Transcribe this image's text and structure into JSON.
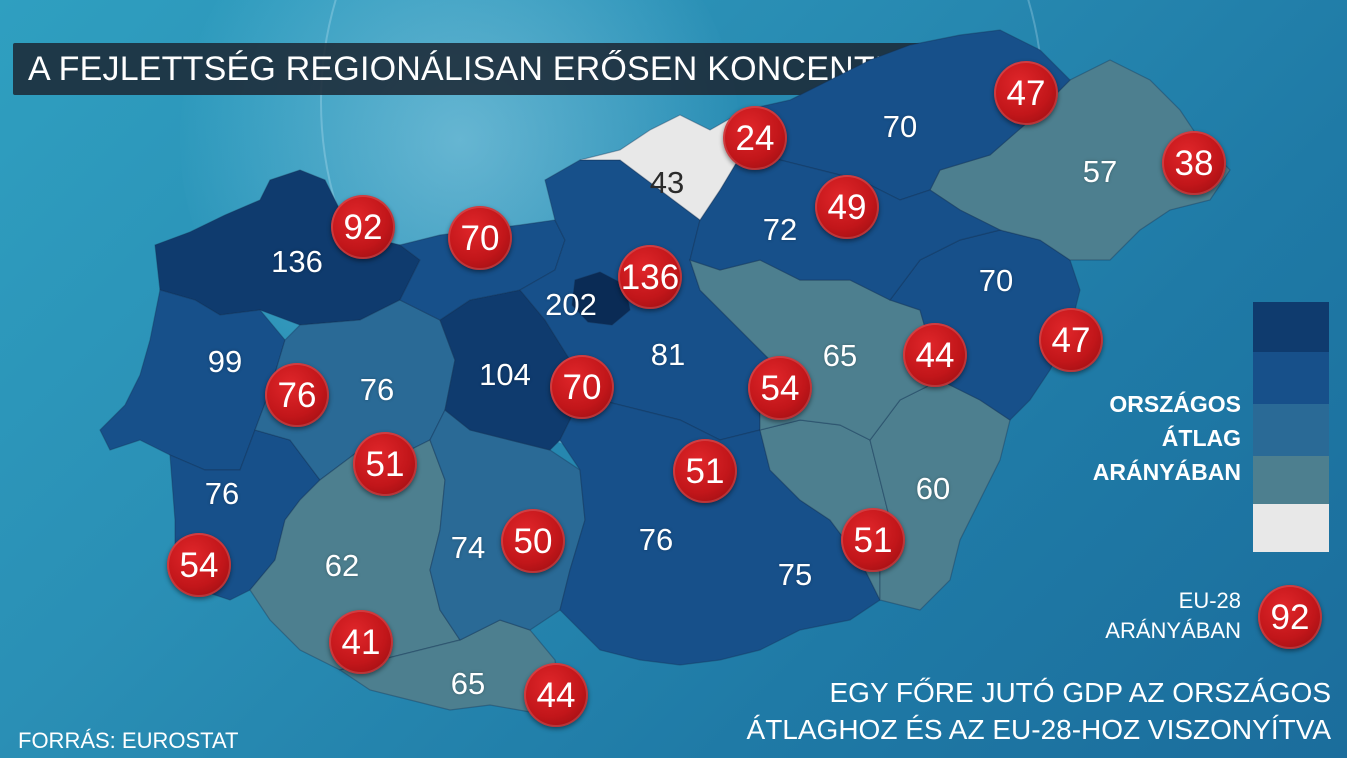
{
  "title": "A FEJLETTSÉG REGIONÁLISAN ERŐSEN KONCENTRÁLT",
  "colors": {
    "level_1": "#0f3b6e",
    "level_2": "#17508a",
    "level_3": "#2a6a96",
    "level_4": "#4d7f8f",
    "level_5": "#e8e8e8",
    "badge": "#c2161a"
  },
  "regions": [
    {
      "national": "136",
      "eu": "92"
    },
    {
      "national": "99",
      "eu": "76"
    },
    {
      "national": "76",
      "eu": "54"
    },
    {
      "national": "76",
      "eu": "51"
    },
    {
      "national": "62",
      "eu": "41"
    },
    {
      "national": "65",
      "eu": "44"
    },
    {
      "national": "74",
      "eu": "50"
    },
    {
      "national": "104",
      "eu": "70"
    },
    {
      "national": "202",
      "eu": "136"
    },
    {
      "national": "81",
      "eu": "70"
    },
    {
      "national": "76",
      "eu": "51"
    },
    {
      "national": "75",
      "eu": "51"
    },
    {
      "national": "60",
      "eu": "51"
    },
    {
      "national": "65",
      "eu": "54"
    },
    {
      "national": "70",
      "eu": "44"
    },
    {
      "national": "70",
      "eu": "47"
    },
    {
      "national": "57",
      "eu": "38"
    },
    {
      "national": "70",
      "eu": "47"
    },
    {
      "national": "72",
      "eu": "49"
    },
    {
      "national": "43",
      "eu": "24"
    }
  ],
  "legend": {
    "national_line1": "ORSZÁGOS",
    "national_line2": "ÁTLAG",
    "national_line3": "ARÁNYÁBAN",
    "eu_line1": "EU-28",
    "eu_line2": "ARÁNYÁBAN",
    "eu_sample": "92"
  },
  "caption": {
    "line1": "EGY FŐRE JUTÓ GDP AZ ORSZÁGOS",
    "line2": "ÁTLAGHOZ ÉS AZ EU-28-HOZ VISZONYÍTVA"
  },
  "source": "FORRÁS: EUROSTAT"
}
